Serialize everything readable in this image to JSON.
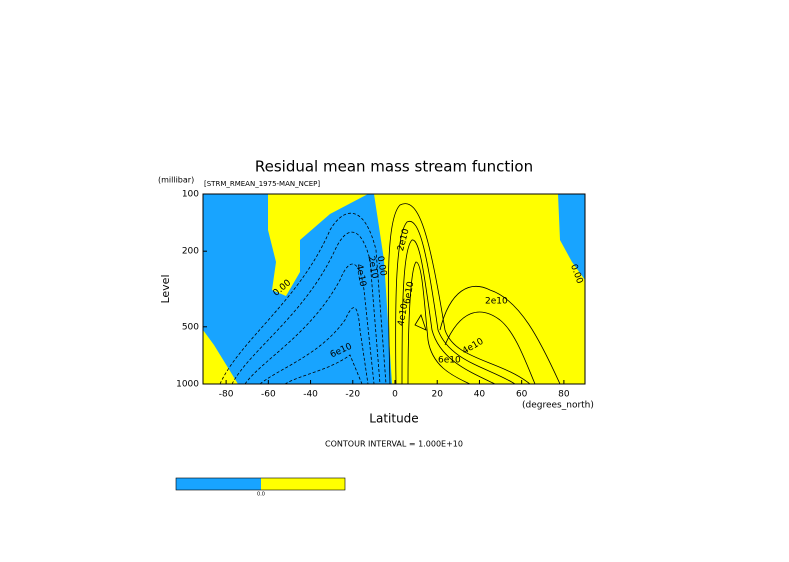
{
  "chart_data": {
    "type": "contour",
    "title": "Residual mean mass stream function",
    "subtitle": "[STRM_RMEAN_1975-MAN_NCEP]",
    "ylabel": "Level",
    "y_unit": "(millibar)",
    "xlabel": "Latitude",
    "x_unit": "(degrees_north)",
    "xlim": [
      -90,
      90
    ],
    "xticks": [
      -80,
      -60,
      -40,
      -20,
      0,
      20,
      40,
      60,
      80
    ],
    "ylim": [
      100,
      1000
    ],
    "yticks": [
      100,
      200,
      500,
      1000
    ],
    "log_y": true,
    "y_reversed": true,
    "fill_colors": [
      "#18a4ff",
      "#ffff00"
    ],
    "contour_labels": [
      "0.00",
      "4e10",
      "2e10",
      "0.00",
      "2e10",
      "4e10",
      "6e10",
      "2e10",
      "6e10",
      "4e10",
      "6e10",
      "0.00"
    ],
    "footnote": "CONTOUR INTERVAL = 1.000E+10",
    "colorbar_label": "0.0"
  }
}
